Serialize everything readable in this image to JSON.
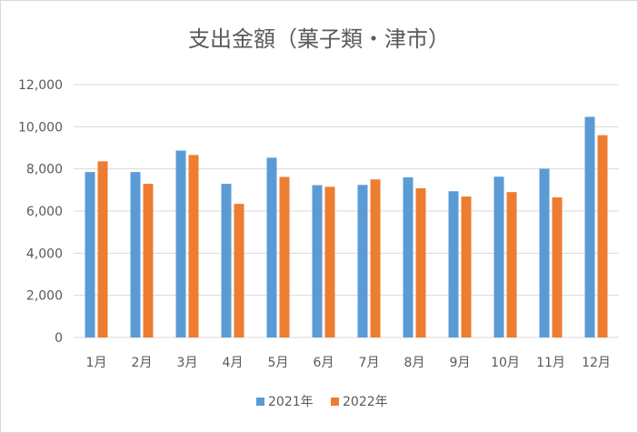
{
  "chart_data": {
    "type": "bar",
    "title": "支出金額（菓子類・津市）",
    "categories": [
      "1月",
      "2月",
      "3月",
      "4月",
      "5月",
      "6月",
      "7月",
      "8月",
      "9月",
      "10月",
      "11月",
      "12月"
    ],
    "series": [
      {
        "name": "2021年",
        "color": "#5b9bd5",
        "values": [
          7850,
          7850,
          8870,
          7290,
          8530,
          7230,
          7240,
          7600,
          6940,
          7630,
          8010,
          10470
        ]
      },
      {
        "name": "2022年",
        "color": "#ed7d31",
        "values": [
          8360,
          7290,
          8660,
          6340,
          7620,
          7150,
          7500,
          7080,
          6690,
          6900,
          6650,
          9600
        ]
      }
    ],
    "ylim": [
      0,
      12000
    ],
    "yticks": [
      0,
      2000,
      4000,
      6000,
      8000,
      10000,
      12000
    ],
    "ytick_labels": [
      "0",
      "2,000",
      "4,000",
      "6,000",
      "8,000",
      "10,000",
      "12,000"
    ],
    "grid": true,
    "legend_position": "bottom"
  }
}
